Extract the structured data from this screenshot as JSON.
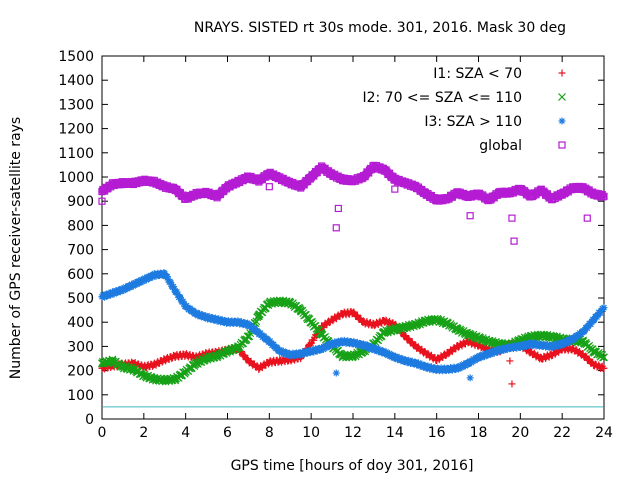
{
  "chart_data": {
    "type": "scatter",
    "title": "NRAYS. SISTED rt 30s mode. 301, 2016. Mask 30 deg",
    "xlabel": "GPS time [hours of doy 301, 2016]",
    "ylabel": "Number of GPS receiver-satellite rays",
    "xlim": [
      0,
      24
    ],
    "ylim": [
      0,
      1500
    ],
    "xticks": [
      "0",
      "2",
      "4",
      "6",
      "8",
      "10",
      "12",
      "14",
      "16",
      "18",
      "20",
      "22",
      "24"
    ],
    "yticks": [
      "0",
      "100",
      "200",
      "300",
      "400",
      "500",
      "600",
      "700",
      "800",
      "900",
      "1000",
      "1100",
      "1200",
      "1300",
      "1400",
      "1500"
    ],
    "grid": false,
    "legend_position": "top-right",
    "reference_line": {
      "y": 50,
      "color": "#3fb9c0"
    },
    "series": [
      {
        "name": "I1: SZA < 70",
        "marker": "+",
        "color": "#e8121e",
        "x": [
          0,
          0.5,
          1,
          1.5,
          2,
          2.5,
          3,
          3.5,
          4,
          4.5,
          5,
          5.5,
          6,
          6.5,
          7,
          7.5,
          8,
          8.5,
          9,
          9.5,
          10,
          10.5,
          11,
          11.5,
          12,
          12.5,
          13,
          13.5,
          14,
          14.5,
          15,
          15.5,
          16,
          16.5,
          17,
          17.5,
          18,
          18.5,
          19,
          19.5,
          20,
          20.5,
          21,
          21.5,
          22,
          22.5,
          23,
          23.5,
          24
        ],
        "y": [
          210,
          220,
          225,
          230,
          215,
          225,
          245,
          260,
          265,
          255,
          270,
          275,
          285,
          290,
          240,
          210,
          235,
          240,
          245,
          255,
          315,
          380,
          410,
          435,
          440,
          400,
          390,
          405,
          390,
          340,
          300,
          270,
          245,
          270,
          300,
          320,
          305,
          285,
          280,
          310,
          305,
          275,
          250,
          265,
          290,
          290,
          265,
          225,
          210
        ],
        "outliers": [
          {
            "x": 19.6,
            "y": 145
          },
          {
            "x": 19.5,
            "y": 240
          }
        ]
      },
      {
        "name": "I2: 70 <= SZA <= 110",
        "marker": "x",
        "color": "#17a117",
        "x": [
          0,
          0.5,
          1,
          1.5,
          2,
          2.5,
          3,
          3.5,
          4,
          4.5,
          5,
          5.5,
          6,
          6.5,
          7,
          7.5,
          8,
          8.5,
          9,
          9.5,
          10,
          10.5,
          11,
          11.5,
          12,
          12.5,
          13,
          13.5,
          14,
          14.5,
          15,
          15.5,
          16,
          16.5,
          17,
          17.5,
          18,
          18.5,
          19,
          19.5,
          20,
          20.5,
          21,
          21.5,
          22,
          22.5,
          23,
          23.5,
          24
        ],
        "y": [
          230,
          240,
          215,
          205,
          180,
          165,
          160,
          165,
          195,
          230,
          250,
          260,
          280,
          295,
          340,
          430,
          480,
          485,
          480,
          450,
          400,
          350,
          300,
          260,
          260,
          280,
          310,
          360,
          370,
          380,
          390,
          405,
          410,
          395,
          370,
          350,
          335,
          320,
          310,
          305,
          325,
          340,
          345,
          340,
          330,
          325,
          320,
          280,
          255
        ],
        "outliers": []
      },
      {
        "name": "I3: SZA > 110",
        "marker": "*",
        "color": "#1e7be0",
        "x": [
          0,
          0.5,
          1,
          1.5,
          2,
          2.5,
          3,
          3.5,
          4,
          4.5,
          5,
          5.5,
          6,
          6.5,
          7,
          7.5,
          8,
          8.5,
          9,
          9.5,
          10,
          10.5,
          11,
          11.5,
          12,
          12.5,
          13,
          13.5,
          14,
          14.5,
          15,
          15.5,
          16,
          16.5,
          17,
          17.5,
          18,
          18.5,
          19,
          19.5,
          20,
          20.5,
          21,
          21.5,
          22,
          22.5,
          23,
          23.5,
          24
        ],
        "y": [
          505,
          520,
          535,
          555,
          575,
          595,
          600,
          530,
          465,
          435,
          420,
          410,
          400,
          400,
          390,
          355,
          320,
          280,
          265,
          270,
          280,
          290,
          310,
          320,
          315,
          305,
          290,
          275,
          255,
          240,
          230,
          215,
          205,
          205,
          210,
          230,
          255,
          270,
          285,
          295,
          300,
          310,
          305,
          300,
          310,
          330,
          360,
          410,
          460
        ],
        "outliers": [
          {
            "x": 11.2,
            "y": 190
          },
          {
            "x": 17.6,
            "y": 170
          }
        ]
      },
      {
        "name": "global",
        "marker": "square",
        "color": "#b41cd3",
        "x": [
          0,
          0.5,
          1,
          1.5,
          2,
          2.5,
          3,
          3.5,
          4,
          4.5,
          5,
          5.5,
          6,
          6.5,
          7,
          7.5,
          8,
          8.5,
          9,
          9.5,
          10,
          10.5,
          11,
          11.5,
          12,
          12.5,
          13,
          13.5,
          14,
          14.5,
          15,
          15.5,
          16,
          16.5,
          17,
          17.5,
          18,
          18.5,
          19,
          19.5,
          20,
          20.5,
          21,
          21.5,
          22,
          22.5,
          23,
          23.5,
          24
        ],
        "y": [
          940,
          970,
          975,
          975,
          985,
          980,
          960,
          950,
          910,
          930,
          935,
          920,
          960,
          980,
          1000,
          985,
          1015,
          995,
          975,
          960,
          1000,
          1040,
          1010,
          990,
          985,
          1000,
          1045,
          1030,
          990,
          975,
          960,
          930,
          905,
          910,
          935,
          920,
          930,
          905,
          935,
          935,
          950,
          920,
          945,
          910,
          930,
          955,
          955,
          930,
          920
        ],
        "outliers": [
          {
            "x": 0,
            "y": 900
          },
          {
            "x": 11.2,
            "y": 790
          },
          {
            "x": 11.3,
            "y": 870
          },
          {
            "x": 17.6,
            "y": 840
          },
          {
            "x": 19.6,
            "y": 830
          },
          {
            "x": 19.7,
            "y": 735
          },
          {
            "x": 23.2,
            "y": 830
          },
          {
            "x": 14,
            "y": 950
          },
          {
            "x": 8,
            "y": 960
          }
        ]
      }
    ]
  }
}
